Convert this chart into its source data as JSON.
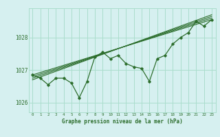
{
  "xlabel": "Graphe pression niveau de la mer (hPa)",
  "ylabel": "",
  "bg_color": "#d6f0f0",
  "grid_color": "#aaddcc",
  "line_color": "#2d6e2d",
  "text_color": "#2d6e2d",
  "hours": [
    0,
    1,
    2,
    3,
    4,
    5,
    6,
    7,
    8,
    9,
    10,
    11,
    12,
    13,
    14,
    15,
    16,
    17,
    18,
    19,
    20,
    21,
    22,
    23
  ],
  "pressure": [
    1026.85,
    1026.75,
    1026.55,
    1026.75,
    1026.75,
    1026.6,
    1026.15,
    1026.65,
    1027.4,
    1027.55,
    1027.35,
    1027.45,
    1027.2,
    1027.1,
    1027.05,
    1026.65,
    1027.35,
    1027.45,
    1027.8,
    1028.0,
    1028.15,
    1028.5,
    1028.35,
    1028.55
  ],
  "trend_lines": [
    {
      "x0": 0,
      "y0": 1026.85,
      "x1": 23,
      "y1": 1028.55
    },
    {
      "x0": 0,
      "y0": 1026.8,
      "x1": 23,
      "y1": 1028.6
    },
    {
      "x0": 0,
      "y0": 1026.75,
      "x1": 23,
      "y1": 1028.65
    },
    {
      "x0": 0,
      "y0": 1026.7,
      "x1": 23,
      "y1": 1028.7
    }
  ],
  "ylim": [
    1025.7,
    1028.9
  ],
  "yticks": [
    1026,
    1027,
    1028
  ],
  "xticks": [
    0,
    1,
    2,
    3,
    4,
    5,
    6,
    7,
    8,
    9,
    10,
    11,
    12,
    13,
    14,
    15,
    16,
    17,
    18,
    19,
    20,
    21,
    22,
    23
  ]
}
